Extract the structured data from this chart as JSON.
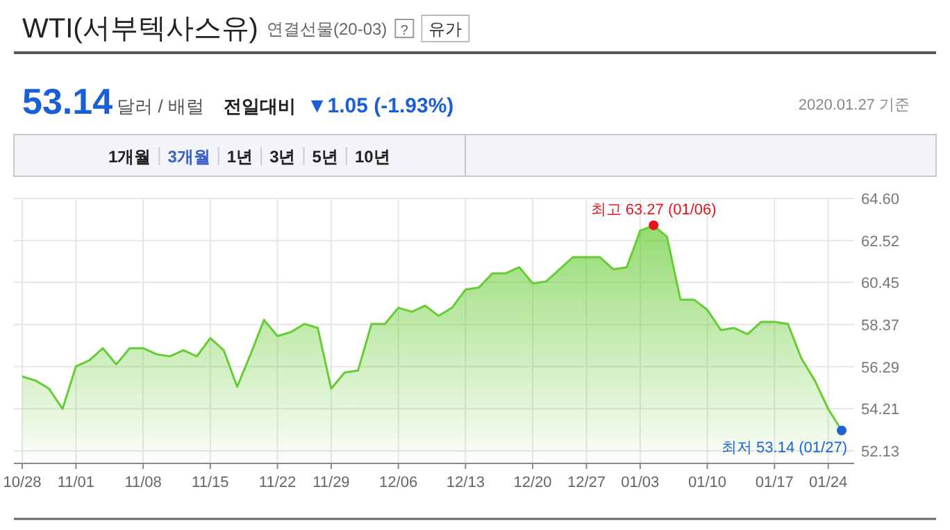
{
  "chart_data": {
    "type": "area",
    "title": "WTI(서부텍사스유)",
    "subtitle": "연결선물(20-03)",
    "categories": [
      "10/28",
      null,
      null,
      null,
      "11/01",
      null,
      null,
      null,
      null,
      "11/08",
      null,
      null,
      null,
      null,
      "11/15",
      null,
      null,
      null,
      null,
      "11/22",
      null,
      null,
      null,
      "11/29",
      null,
      null,
      null,
      null,
      "12/06",
      null,
      null,
      null,
      null,
      "12/13",
      null,
      null,
      null,
      null,
      "12/20",
      null,
      null,
      null,
      "12/27",
      null,
      null,
      null,
      "01/03",
      null,
      null,
      null,
      null,
      "01/10",
      null,
      null,
      null,
      null,
      "01/17",
      null,
      null,
      null,
      "01/24",
      null
    ],
    "series": [
      {
        "color": "#66cc33",
        "values": [
          55.8,
          55.6,
          55.2,
          54.2,
          56.3,
          56.6,
          57.2,
          56.4,
          57.2,
          57.2,
          56.9,
          56.8,
          57.1,
          56.8,
          57.7,
          57.1,
          55.3,
          56.9,
          58.6,
          57.8,
          58.0,
          58.4,
          58.2,
          55.2,
          56.0,
          56.1,
          58.4,
          58.4,
          59.2,
          59.0,
          59.3,
          58.8,
          59.2,
          60.1,
          60.2,
          60.9,
          60.9,
          61.2,
          60.4,
          60.5,
          61.1,
          61.7,
          61.7,
          61.7,
          61.1,
          61.2,
          63.0,
          63.27,
          62.7,
          59.6,
          59.6,
          59.1,
          58.1,
          58.2,
          57.9,
          58.5,
          58.5,
          58.4,
          56.7,
          55.6,
          54.2,
          53.14
        ]
      }
    ],
    "ylim": [
      51.51,
      64.6
    ],
    "yticks": [
      52.13,
      54.21,
      56.29,
      58.37,
      60.45,
      62.52,
      {
        "value": 64.6,
        "label": "64.60"
      }
    ],
    "grid": true,
    "annotations": [
      "?",
      "유가",
      "53.14",
      "달러 / 배럴",
      "전일대비",
      "▼1.05 (-1.93%)",
      "2020.01.27 기준",
      "1개월",
      "3개월",
      "1년",
      "3년",
      "5년",
      "10년",
      {
        "text": "최고 63.27 (01/06)",
        "y": 63.27
      },
      "최저 53.14 (01/27)"
    ]
  }
}
